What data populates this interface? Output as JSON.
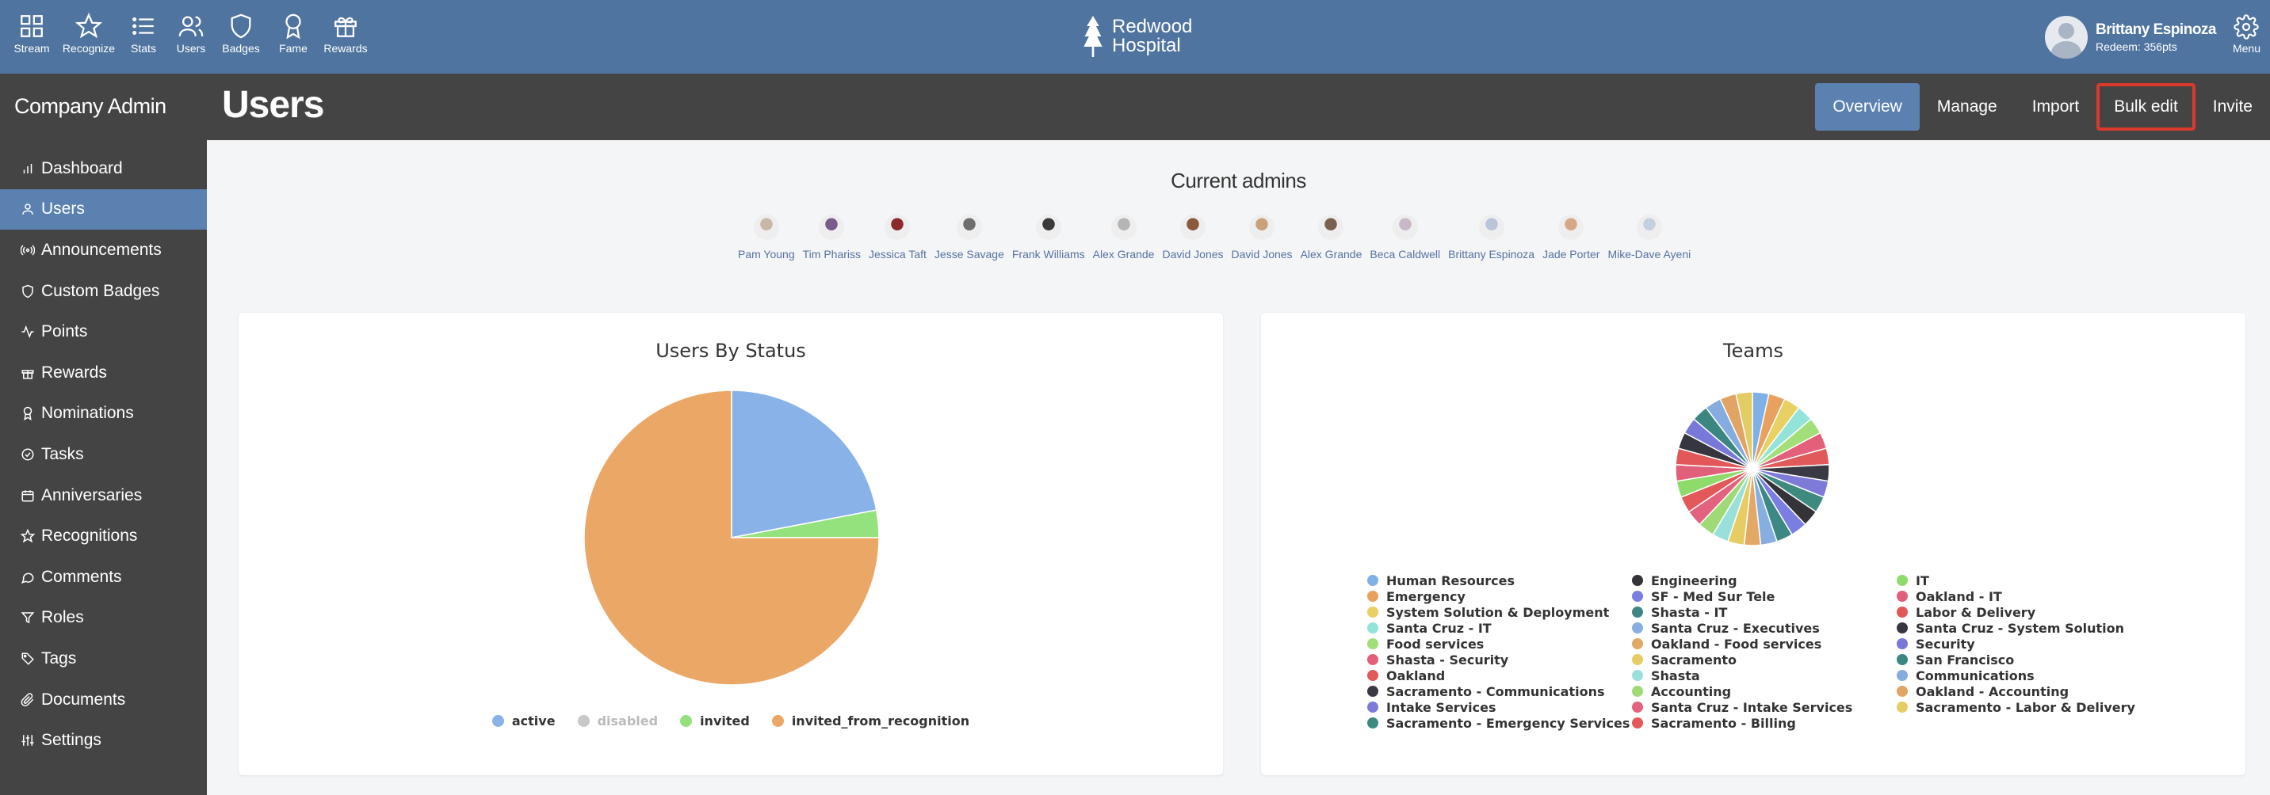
{
  "topnav": {
    "items": [
      {
        "label": "Stream",
        "icon": "grid-icon"
      },
      {
        "label": "Recognize",
        "icon": "star-icon"
      },
      {
        "label": "Stats",
        "icon": "list-icon"
      },
      {
        "label": "Users",
        "icon": "users-icon"
      },
      {
        "label": "Badges",
        "icon": "shield-icon"
      },
      {
        "label": "Fame",
        "icon": "award-icon"
      },
      {
        "label": "Rewards",
        "icon": "gift-icon"
      }
    ],
    "brand_line1": "Redwood",
    "brand_line2": "Hospital",
    "user_name": "Brittany Espinoza",
    "user_points": "Redeem: 356pts",
    "menu_label": "Menu"
  },
  "header": {
    "section_title": "Company Admin",
    "page_title": "Users",
    "actions": [
      "Overview",
      "Manage",
      "Import",
      "Bulk edit",
      "Invite"
    ]
  },
  "sidebar": {
    "items": [
      {
        "label": "Dashboard",
        "icon": "bar-chart-icon"
      },
      {
        "label": "Users",
        "icon": "user-icon"
      },
      {
        "label": "Announcements",
        "icon": "broadcast-icon"
      },
      {
        "label": "Custom Badges",
        "icon": "shield-icon"
      },
      {
        "label": "Points",
        "icon": "activity-icon"
      },
      {
        "label": "Rewards",
        "icon": "gift-icon"
      },
      {
        "label": "Nominations",
        "icon": "award-icon"
      },
      {
        "label": "Tasks",
        "icon": "check-circle-icon"
      },
      {
        "label": "Anniversaries",
        "icon": "calendar-icon"
      },
      {
        "label": "Recognitions",
        "icon": "star-icon"
      },
      {
        "label": "Comments",
        "icon": "comment-icon"
      },
      {
        "label": "Roles",
        "icon": "filter-icon"
      },
      {
        "label": "Tags",
        "icon": "tag-icon"
      },
      {
        "label": "Documents",
        "icon": "paperclip-icon"
      },
      {
        "label": "Settings",
        "icon": "sliders-icon"
      }
    ]
  },
  "admins": {
    "title": "Current admins",
    "people": [
      {
        "name": "Pam Young",
        "color": "#c9b7a6"
      },
      {
        "name": "Tim Phariss",
        "color": "#7a5c8a"
      },
      {
        "name": "Jessica Taft",
        "color": "#8a2a2a"
      },
      {
        "name": "Jesse Savage",
        "color": "#6e6e6e"
      },
      {
        "name": "Frank Williams",
        "color": "#3a3a3a"
      },
      {
        "name": "Alex Grande",
        "color": "#b5b5b5"
      },
      {
        "name": "David Jones",
        "color": "#8a5a3a"
      },
      {
        "name": "David Jones",
        "color": "#c9a27a"
      },
      {
        "name": "Alex Grande",
        "color": "#7a6050"
      },
      {
        "name": "Beca Caldwell",
        "color": "#c8b8c8"
      },
      {
        "name": "Brittany Espinoza",
        "color": "#b9c6d8"
      },
      {
        "name": "Jade Porter",
        "color": "#d7a78a"
      },
      {
        "name": "Mike-Dave Ayeni",
        "color": "#c4d0e0"
      }
    ]
  },
  "callout_number": "4",
  "chart_data": [
    {
      "type": "pie",
      "title": "Users By Status",
      "slices": [
        {
          "label": "active",
          "value": 22,
          "color": "#88b2e8",
          "visible": true
        },
        {
          "label": "disabled",
          "value": 0,
          "color": "#c8c8c8",
          "visible": false
        },
        {
          "label": "invited",
          "value": 3,
          "color": "#94e27d",
          "visible": true
        },
        {
          "label": "invited_from_recognition",
          "value": 75,
          "color": "#eba765",
          "visible": true
        }
      ]
    },
    {
      "type": "pie",
      "title": "Teams",
      "slices": [
        {
          "label": "Human Resources",
          "value": 1,
          "color": "#7fb0e6"
        },
        {
          "label": "Emergency",
          "value": 1,
          "color": "#e8a15e"
        },
        {
          "label": "System Solution & Deployment",
          "value": 1,
          "color": "#e8d063"
        },
        {
          "label": "Santa Cruz - IT",
          "value": 1,
          "color": "#93e3d8"
        },
        {
          "label": "Food services",
          "value": 1,
          "color": "#a3df78"
        },
        {
          "label": "Shasta - Security",
          "value": 1,
          "color": "#e3607a"
        },
        {
          "label": "Oakland",
          "value": 1,
          "color": "#e05a5a"
        },
        {
          "label": "Sacramento - Communications",
          "value": 1,
          "color": "#3a3a44"
        },
        {
          "label": "Intake Services",
          "value": 1,
          "color": "#7d7ad8"
        },
        {
          "label": "Sacramento - Emergency Services",
          "value": 1,
          "color": "#3f8a7e"
        },
        {
          "label": "Engineering",
          "value": 1,
          "color": "#333338"
        },
        {
          "label": "SF - Med Sur Tele",
          "value": 1,
          "color": "#7a7ee0"
        },
        {
          "label": "Shasta - IT",
          "value": 1,
          "color": "#3d8884"
        },
        {
          "label": "Santa Cruz - Executives",
          "value": 1,
          "color": "#86aee0"
        },
        {
          "label": "Oakland - Food services",
          "value": 1,
          "color": "#e4a866"
        },
        {
          "label": "Sacramento",
          "value": 1,
          "color": "#e6cc62"
        },
        {
          "label": "Shasta",
          "value": 1,
          "color": "#9ae0da"
        },
        {
          "label": "Accounting",
          "value": 1,
          "color": "#9fda76"
        },
        {
          "label": "Santa Cruz - Intake Services",
          "value": 1,
          "color": "#e26280"
        },
        {
          "label": "Sacramento - Billing",
          "value": 1,
          "color": "#e35858"
        },
        {
          "label": "IT",
          "value": 1,
          "color": "#8edb6c"
        },
        {
          "label": "Oakland - IT",
          "value": 1,
          "color": "#e0607a"
        },
        {
          "label": "Labor & Delivery",
          "value": 1,
          "color": "#e25858"
        },
        {
          "label": "Santa Cruz - System Solution",
          "value": 1,
          "color": "#363640"
        },
        {
          "label": "Security",
          "value": 1,
          "color": "#7878d8"
        },
        {
          "label": "San Francisco",
          "value": 1,
          "color": "#3b8680"
        },
        {
          "label": "Communications",
          "value": 1,
          "color": "#84acde"
        },
        {
          "label": "Oakland - Accounting",
          "value": 1,
          "color": "#e2a464"
        },
        {
          "label": "Sacramento - Labor & Delivery",
          "value": 1,
          "color": "#e4cc64"
        }
      ]
    }
  ]
}
